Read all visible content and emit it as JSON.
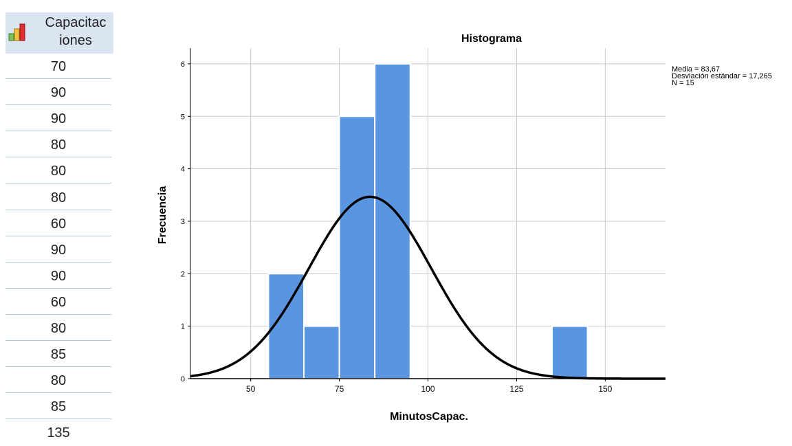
{
  "data_view": {
    "column_header": "Capacitac\niones",
    "icon": "scale-variable-icon",
    "values": [
      "70",
      "90",
      "90",
      "80",
      "80",
      "80",
      "60",
      "90",
      "90",
      "60",
      "80",
      "85",
      "80",
      "85",
      "135"
    ]
  },
  "chart_data": {
    "type": "bar",
    "title": "Histograma",
    "xlabel": "MinutosCapac.",
    "ylabel": "Frecuencia",
    "bins": [
      {
        "x0": 55,
        "x1": 65,
        "count": 2
      },
      {
        "x0": 65,
        "x1": 75,
        "count": 1
      },
      {
        "x0": 75,
        "x1": 85,
        "count": 5
      },
      {
        "x0": 85,
        "x1": 95,
        "count": 6
      },
      {
        "x0": 135,
        "x1": 145,
        "count": 1
      }
    ],
    "xlim": [
      33,
      167
    ],
    "ylim": [
      0,
      6.3
    ],
    "x_ticks": [
      50,
      75,
      100,
      125,
      150
    ],
    "y_ticks": [
      0,
      1,
      2,
      3,
      4,
      5,
      6
    ],
    "normal_curve": {
      "mean": 83.67,
      "sd": 17.265,
      "n": 15,
      "bin_width": 10
    },
    "grid": true,
    "legend_position": "top-right",
    "legend_lines": [
      "Media = 83,67",
      "Desviación estándar = 17,265",
      "N = 15"
    ],
    "colors": {
      "bar": "#5a96e0",
      "curve": "#000000",
      "grid": "#c8c8c8"
    }
  }
}
